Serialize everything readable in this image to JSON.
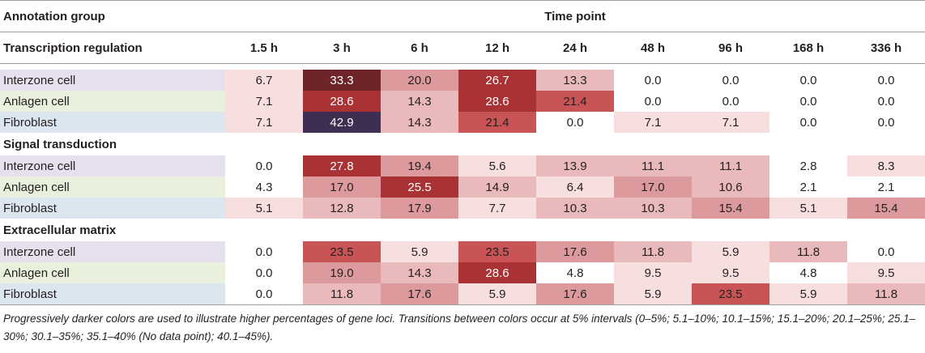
{
  "header": {
    "group_label": "Annotation group",
    "time_point_label": "Time point",
    "time_points": [
      "1.5 h",
      "3 h",
      "6 h",
      "12 h",
      "24 h",
      "48 h",
      "96 h",
      "168 h",
      "336 h"
    ]
  },
  "groups": [
    {
      "name": "Transcription regulation",
      "rows": [
        {
          "label": "Interzone cell",
          "values": [
            "6.7",
            "33.3",
            "20.0",
            "26.7",
            "13.3",
            "0.0",
            "0.0",
            "0.0",
            "0.0"
          ]
        },
        {
          "label": "Anlagen cell",
          "values": [
            "7.1",
            "28.6",
            "14.3",
            "28.6",
            "21.4",
            "0.0",
            "0.0",
            "0.0",
            "0.0"
          ]
        },
        {
          "label": "Fibroblast",
          "values": [
            "7.1",
            "42.9",
            "14.3",
            "21.4",
            "0.0",
            "7.1",
            "7.1",
            "0.0",
            "0.0"
          ]
        }
      ]
    },
    {
      "name": "Signal transduction",
      "rows": [
        {
          "label": "Interzone cell",
          "values": [
            "0.0",
            "27.8",
            "19.4",
            "5.6",
            "13.9",
            "11.1",
            "11.1",
            "2.8",
            "8.3"
          ]
        },
        {
          "label": "Anlagen cell",
          "values": [
            "4.3",
            "17.0",
            "25.5",
            "14.9",
            "6.4",
            "17.0",
            "10.6",
            "2.1",
            "2.1"
          ]
        },
        {
          "label": "Fibroblast",
          "values": [
            "5.1",
            "12.8",
            "17.9",
            "7.7",
            "10.3",
            "10.3",
            "15.4",
            "5.1",
            "15.4"
          ]
        }
      ]
    },
    {
      "name": "Extracellular matrix",
      "rows": [
        {
          "label": "Interzone cell",
          "values": [
            "0.0",
            "23.5",
            "5.9",
            "23.5",
            "17.6",
            "11.8",
            "5.9",
            "11.8",
            "0.0"
          ]
        },
        {
          "label": "Anlagen cell",
          "values": [
            "0.0",
            "19.0",
            "14.3",
            "28.6",
            "4.8",
            "9.5",
            "9.5",
            "4.8",
            "9.5"
          ]
        },
        {
          "label": "Fibroblast",
          "values": [
            "0.0",
            "11.8",
            "17.6",
            "5.9",
            "17.6",
            "5.9",
            "23.5",
            "5.9",
            "11.8"
          ]
        }
      ]
    }
  ],
  "footnote": "Progressively darker colors are used to illustrate higher percentages of gene loci. Transitions between colors occur at 5% intervals (0–5%; 5.1–10%; 10.1–15%; 15.1–20%; 20.1–25%; 25.1–30%; 30.1–35%; 35.1–40% (No data point); 40.1–45%).",
  "colors": {
    "bins": [
      "#ffffff",
      "#f7dfe0",
      "#eab9bb",
      "#dc9a9c",
      "#c85455",
      "#a93234",
      "#6e2428",
      "#4e2c4d",
      "#3d2e52"
    ],
    "text": "#231f20",
    "interzone_bg": "#e6e0ee",
    "anlagen_bg": "#e9f1dc",
    "fibroblast_bg": "#dce6f1"
  }
}
